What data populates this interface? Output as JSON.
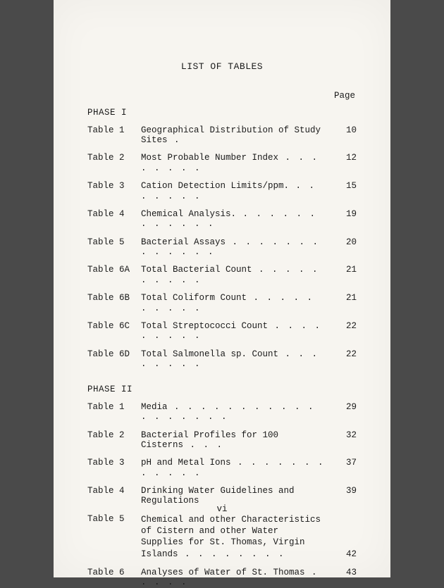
{
  "title": "LIST OF TABLES",
  "page_header": "Page",
  "folio": "vi",
  "text_color": "#1a1a1a",
  "background_color": "#f7f5f0",
  "font_family": "Courier New",
  "base_fontsize": 12.5,
  "title_fontsize": 13,
  "phases": [
    {
      "heading": "PHASE I",
      "entries": [
        {
          "label": "Table 1",
          "title": "Geographical Distribution of Study Sites",
          "dots": " .",
          "page": "10"
        },
        {
          "label": "Table 2",
          "title": "Most Probable Number Index",
          "dots": " . . . . . . . .",
          "page": "12"
        },
        {
          "label": "Table 3",
          "title": "Cation Detection Limits/ppm.",
          "dots": " . . . . . . .",
          "page": "15"
        },
        {
          "label": "Table 4",
          "title": "Chemical Analysis.",
          "dots": " . . . . . . . . . . . .",
          "page": "19"
        },
        {
          "label": "Table 5",
          "title": "Bacterial Assays",
          "dots": " . . . . . . . . . . . . .",
          "page": "20"
        },
        {
          "label": "Table 6A",
          "title": "Total Bacterial Count",
          "dots": "  . . . . . . . . . .",
          "page": "21"
        },
        {
          "label": "Table 6B",
          "title": "Total Coliform Count",
          "dots": "   . . . . . . . . . .",
          "page": "21"
        },
        {
          "label": "Table 6C",
          "title": "Total Streptococci Count",
          "dots": " . . . . . . . . .",
          "page": "22"
        },
        {
          "label": "Table 6D",
          "title": "Total Salmonella sp. Count",
          "dots": " . . . . . . . .",
          "page": "22"
        }
      ]
    },
    {
      "heading": "PHASE II",
      "entries": [
        {
          "label": "Table 1",
          "title": "Media",
          "dots": "  . . . . . . . . . . . . . . . . . .",
          "page": "29"
        },
        {
          "label": "Table 2",
          "title": "Bacterial Profiles for 100 Cisterns",
          "dots": "  . . .",
          "page": "32"
        },
        {
          "label": "Table 3",
          "title": "pH and Metal Ions",
          "dots": "  . . . . . . . . . . . .",
          "page": "37"
        },
        {
          "label": "Table 4",
          "title": "Drinking Water Guidelines and Regulations",
          "dots": "",
          "page": "39"
        },
        {
          "label": "Table 5",
          "title": "Chemical and other Characteristics of Cistern and other Water Supplies for St. Thomas, Virgin Islands",
          "dots": " . . . . . . . .",
          "page": "42",
          "multiline": true
        },
        {
          "label": "Table 6",
          "title": "Analyses of Water of St. Thomas",
          "dots": "  . . . . .",
          "page": "43"
        }
      ]
    }
  ]
}
